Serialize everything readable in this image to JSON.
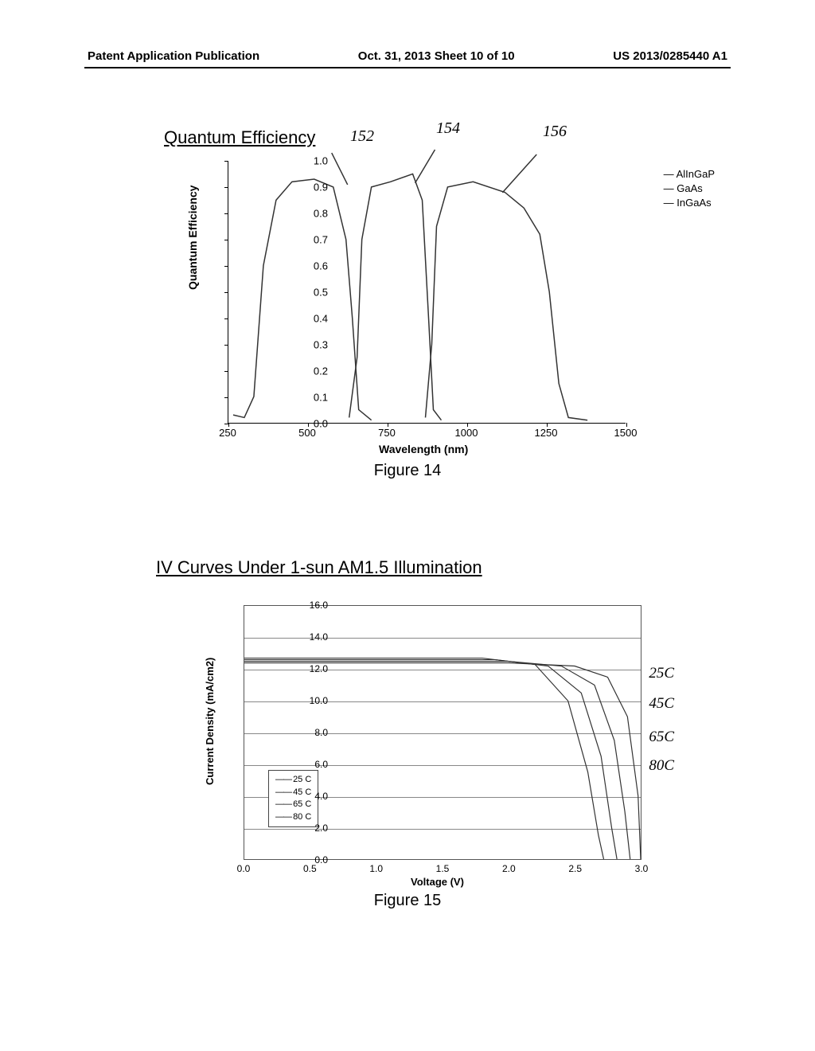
{
  "header": {
    "left": "Patent Application Publication",
    "center": "Oct. 31, 2013  Sheet 10 of 10",
    "right": "US 2013/0285440 A1"
  },
  "fig14": {
    "title_u": "Quantum Efficiency",
    "caption": "Figure 14",
    "ylabel": "Quantum Efficiency",
    "xlabel": "Wavelength (nm)",
    "type": "line",
    "xlim": [
      250,
      1500
    ],
    "ylim": [
      0.0,
      1.0
    ],
    "yticks": [
      "0.0",
      "0.1",
      "0.2",
      "0.3",
      "0.4",
      "0.5",
      "0.6",
      "0.7",
      "0.8",
      "0.9",
      "1.0"
    ],
    "xticks": [
      "250",
      "500",
      "750",
      "1000",
      "1250",
      "1500"
    ],
    "legend": [
      "AlInGaP",
      "GaAs",
      "InGaAs"
    ],
    "annotations": [
      "152",
      "154",
      "156"
    ],
    "background_color": "#ffffff",
    "line_color": "#333333",
    "series": {
      "AlInGaP": [
        [
          265,
          0.03
        ],
        [
          300,
          0.02
        ],
        [
          330,
          0.1
        ],
        [
          360,
          0.6
        ],
        [
          400,
          0.85
        ],
        [
          450,
          0.92
        ],
        [
          520,
          0.93
        ],
        [
          580,
          0.9
        ],
        [
          620,
          0.7
        ],
        [
          640,
          0.4
        ],
        [
          660,
          0.05
        ],
        [
          700,
          0.01
        ]
      ],
      "GaAs": [
        [
          630,
          0.02
        ],
        [
          655,
          0.25
        ],
        [
          670,
          0.7
        ],
        [
          700,
          0.9
        ],
        [
          760,
          0.92
        ],
        [
          830,
          0.95
        ],
        [
          860,
          0.85
        ],
        [
          880,
          0.4
        ],
        [
          895,
          0.05
        ],
        [
          920,
          0.01
        ]
      ],
      "InGaAs": [
        [
          870,
          0.02
        ],
        [
          890,
          0.3
        ],
        [
          905,
          0.75
        ],
        [
          940,
          0.9
        ],
        [
          1020,
          0.92
        ],
        [
          1120,
          0.88
        ],
        [
          1180,
          0.82
        ],
        [
          1230,
          0.72
        ],
        [
          1260,
          0.5
        ],
        [
          1290,
          0.15
        ],
        [
          1320,
          0.02
        ],
        [
          1380,
          0.01
        ]
      ]
    }
  },
  "fig15": {
    "title_u": "IV Curves Under 1-sun AM1.5 Illumination",
    "caption": "Figure 15",
    "ylabel": "Current Density (mA/cm2)",
    "xlabel": "Voltage (V)",
    "type": "line",
    "xlim": [
      0.0,
      3.0
    ],
    "ylim": [
      0.0,
      16.0
    ],
    "yticks": [
      "0.0",
      "2.0",
      "4.0",
      "6.0",
      "8.0",
      "10.0",
      "12.0",
      "14.0",
      "16.0"
    ],
    "xticks": [
      "0.0",
      "0.5",
      "1.0",
      "1.5",
      "2.0",
      "2.5",
      "3.0"
    ],
    "legend": [
      "25 C",
      "45 C",
      "65 C",
      "80 C"
    ],
    "annotations": [
      "25C",
      "45C",
      "65C",
      "80C"
    ],
    "grid_color": "#888888",
    "background_color": "#ffffff",
    "line_color": "#555555",
    "series": {
      "25C": [
        [
          0,
          12.4
        ],
        [
          2.0,
          12.4
        ],
        [
          2.5,
          12.2
        ],
        [
          2.75,
          11.5
        ],
        [
          2.9,
          9.0
        ],
        [
          2.98,
          4.0
        ],
        [
          3.0,
          0
        ]
      ],
      "45C": [
        [
          0,
          12.5
        ],
        [
          2.0,
          12.5
        ],
        [
          2.4,
          12.2
        ],
        [
          2.65,
          11.0
        ],
        [
          2.8,
          7.5
        ],
        [
          2.88,
          3.0
        ],
        [
          2.92,
          0
        ]
      ],
      "65C": [
        [
          0,
          12.6
        ],
        [
          1.9,
          12.6
        ],
        [
          2.3,
          12.2
        ],
        [
          2.55,
          10.5
        ],
        [
          2.7,
          6.5
        ],
        [
          2.78,
          2.0
        ],
        [
          2.82,
          0
        ]
      ],
      "80C": [
        [
          0,
          12.7
        ],
        [
          1.8,
          12.7
        ],
        [
          2.2,
          12.3
        ],
        [
          2.45,
          10.0
        ],
        [
          2.6,
          5.5
        ],
        [
          2.68,
          1.5
        ],
        [
          2.72,
          0
        ]
      ]
    }
  }
}
